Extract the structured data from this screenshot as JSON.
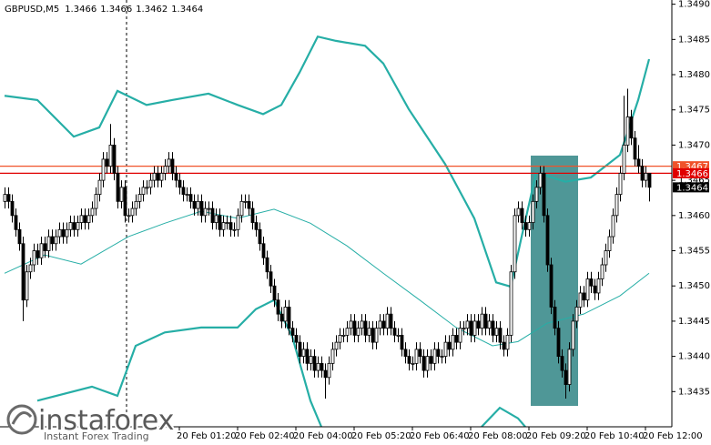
{
  "chart_data": {
    "type": "candlestick",
    "symbol": "GBPUSD,M5",
    "up_color": "#ffffff",
    "down_color": "#000000",
    "outline": "#000000",
    "xlim": [
      -1.25,
      183.25
    ],
    "ylim": [
      1.343,
      1.34906
    ],
    "yticks": [
      1.3435,
      {
        "value": 1.344,
        "label": "1.3440"
      },
      1.3445,
      {
        "value": 1.345,
        "label": "1.3450"
      },
      1.3455,
      {
        "value": 1.346,
        "label": "1.3460"
      },
      1.3465,
      {
        "value": 1.347,
        "label": "1.3470"
      },
      1.3475,
      {
        "value": 1.348,
        "label": "1.3480"
      },
      1.3485,
      {
        "value": 1.349,
        "label": "1.3490"
      }
    ],
    "xticks": [
      {
        "value": 48,
        "label": "20 Feb 01:20"
      },
      {
        "value": 64,
        "label": "20 Feb 02:40"
      },
      {
        "value": 80,
        "label": "20 Feb 04:00"
      },
      {
        "value": 96,
        "label": "20 Feb 05:20"
      },
      {
        "value": 112,
        "label": "20 Feb 06:40"
      },
      {
        "value": 128,
        "label": "20 Feb 08:00"
      },
      {
        "value": 144,
        "label": "20 Feb 09:20"
      },
      {
        "value": 160,
        "label": "20 Feb 10:40"
      },
      {
        "value": 176,
        "label": "20 Feb 12:00"
      }
    ],
    "open": [
      1.3462,
      1.3463,
      1.3462,
      1.346,
      1.3458,
      1.3456,
      1.3448,
      1.3452,
      1.3453,
      1.3455,
      1.3454,
      1.3456,
      1.3455,
      1.3457,
      1.3456,
      1.3457,
      1.3458,
      1.3457,
      1.3458,
      1.3459,
      1.3458,
      1.3459,
      1.346,
      1.3459,
      1.346,
      1.3461,
      1.3463,
      1.3465,
      1.3468,
      1.3467,
      1.347,
      1.3466,
      1.3462,
      1.3464,
      1.346,
      1.346,
      1.3461,
      1.3462,
      1.3463,
      1.3464,
      1.3464,
      1.3465,
      1.3466,
      1.3465,
      1.3466,
      1.3467,
      1.3468,
      1.3466,
      1.3465,
      1.3464,
      1.3463,
      1.3463,
      1.3462,
      1.3461,
      1.3462,
      1.346,
      1.3461,
      1.3461,
      1.3459,
      1.346,
      1.3458,
      1.3459,
      1.3459,
      1.3458,
      1.3458,
      1.346,
      1.3462,
      1.3462,
      1.3461,
      1.3459,
      1.3458,
      1.3456,
      1.3454,
      1.3452,
      1.345,
      1.3448,
      1.3446,
      1.3445,
      1.3447,
      1.3444,
      1.3443,
      1.3442,
      1.344,
      1.3441,
      1.3439,
      1.344,
      1.3438,
      1.3439,
      1.3438,
      1.3437,
      1.3439,
      1.3441,
      1.3442,
      1.3443,
      1.3443,
      1.3444,
      1.3445,
      1.3443,
      1.3444,
      1.3445,
      1.3443,
      1.3444,
      1.3442,
      1.3444,
      1.3445,
      1.3444,
      1.3446,
      1.3444,
      1.3443,
      1.3443,
      1.3441,
      1.344,
      1.3439,
      1.3439,
      1.3441,
      1.344,
      1.3438,
      1.344,
      1.3439,
      1.3441,
      1.344,
      1.344,
      1.3442,
      1.3441,
      1.3443,
      1.3442,
      1.3444,
      1.3444,
      1.3445,
      1.3443,
      1.3445,
      1.3444,
      1.3446,
      1.3444,
      1.3445,
      1.3443,
      1.3444,
      1.3442,
      1.3441,
      1.3443,
      1.3452,
      1.346,
      1.3461,
      1.3459,
      1.3458,
      1.3459,
      1.3462,
      1.3464,
      1.3466,
      1.346,
      1.3453,
      1.3447,
      1.3444,
      1.344,
      1.3438,
      1.3436,
      1.3441,
      1.3445,
      1.3447,
      1.3449,
      1.3448,
      1.3451,
      1.345,
      1.3449,
      1.3451,
      1.3453,
      1.3455,
      1.3457,
      1.346,
      1.3463,
      1.3466,
      1.347,
      1.3474,
      1.3471,
      1.3468,
      1.3467,
      1.3465,
      1.3466
    ],
    "high": [
      1.3464,
      1.3464,
      1.3463,
      1.3461,
      1.3459,
      1.3457,
      1.3453,
      1.3454,
      1.3456,
      1.3456,
      1.3457,
      1.3457,
      1.3458,
      1.3458,
      1.3458,
      1.3459,
      1.3459,
      1.3459,
      1.346,
      1.346,
      1.346,
      1.3461,
      1.3461,
      1.3461,
      1.3462,
      1.3464,
      1.3466,
      1.3469,
      1.3469,
      1.3473,
      1.3471,
      1.3467,
      1.3465,
      1.3465,
      1.3461,
      1.3462,
      1.3463,
      1.3464,
      1.3465,
      1.3465,
      1.3466,
      1.3467,
      1.3467,
      1.3467,
      1.3468,
      1.3469,
      1.3469,
      1.3467,
      1.3466,
      1.3465,
      1.3464,
      1.3464,
      1.3463,
      1.3463,
      1.3463,
      1.3462,
      1.3462,
      1.3462,
      1.3461,
      1.3461,
      1.346,
      1.346,
      1.346,
      1.3459,
      1.3461,
      1.3463,
      1.3463,
      1.3463,
      1.3462,
      1.346,
      1.3459,
      1.3457,
      1.3455,
      1.3453,
      1.3451,
      1.3449,
      1.3447,
      1.3448,
      1.3448,
      1.3445,
      1.3444,
      1.3443,
      1.3442,
      1.3442,
      1.3441,
      1.3441,
      1.344,
      1.344,
      1.3439,
      1.344,
      1.3442,
      1.3443,
      1.3444,
      1.3444,
      1.3445,
      1.3446,
      1.3446,
      1.3445,
      1.3446,
      1.3446,
      1.3445,
      1.3445,
      1.3445,
      1.3446,
      1.3446,
      1.3447,
      1.3447,
      1.3445,
      1.3444,
      1.3444,
      1.3442,
      1.3441,
      1.344,
      1.3442,
      1.3442,
      1.3441,
      1.3441,
      1.3441,
      1.3442,
      1.3442,
      1.3441,
      1.3443,
      1.3443,
      1.3444,
      1.3444,
      1.3445,
      1.3445,
      1.3446,
      1.3446,
      1.3446,
      1.3446,
      1.3447,
      1.3447,
      1.3446,
      1.3446,
      1.3445,
      1.3445,
      1.3443,
      1.3444,
      1.3453,
      1.3461,
      1.3462,
      1.3462,
      1.346,
      1.346,
      1.3463,
      1.3465,
      1.3467,
      1.3467,
      1.3461,
      1.3454,
      1.3448,
      1.3445,
      1.3441,
      1.3439,
      1.3442,
      1.3446,
      1.3448,
      1.345,
      1.345,
      1.3452,
      1.3452,
      1.3451,
      1.3452,
      1.3454,
      1.3456,
      1.3458,
      1.3461,
      1.3464,
      1.3467,
      1.3477,
      1.3478,
      1.3475,
      1.3472,
      1.347,
      1.3468,
      1.3467,
      1.3466
    ],
    "low": [
      1.3461,
      1.3461,
      1.3459,
      1.3457,
      1.3455,
      1.3445,
      1.3447,
      1.3451,
      1.3452,
      1.3453,
      1.3453,
      1.3454,
      1.3454,
      1.3455,
      1.3455,
      1.3456,
      1.3456,
      1.3456,
      1.3457,
      1.3457,
      1.3457,
      1.3458,
      1.3458,
      1.3458,
      1.3459,
      1.346,
      1.3462,
      1.3464,
      1.3466,
      1.3466,
      1.3465,
      1.3461,
      1.3461,
      1.3459,
      1.3459,
      1.3459,
      1.346,
      1.3461,
      1.3462,
      1.3463,
      1.3463,
      1.3464,
      1.3464,
      1.3464,
      1.3465,
      1.3466,
      1.3465,
      1.3464,
      1.3463,
      1.3462,
      1.3462,
      1.3461,
      1.346,
      1.346,
      1.3459,
      1.3459,
      1.346,
      1.3458,
      1.3458,
      1.3457,
      1.3457,
      1.3458,
      1.3457,
      1.3457,
      1.3457,
      1.3459,
      1.3461,
      1.346,
      1.3458,
      1.3457,
      1.3455,
      1.3453,
      1.3451,
      1.3449,
      1.3447,
      1.3445,
      1.3444,
      1.3444,
      1.3443,
      1.3442,
      1.3441,
      1.3439,
      1.3439,
      1.3438,
      1.3438,
      1.3437,
      1.3437,
      1.3437,
      1.3434,
      1.3436,
      1.3438,
      1.344,
      1.3441,
      1.3442,
      1.3442,
      1.3443,
      1.3442,
      1.3442,
      1.3443,
      1.3442,
      1.3442,
      1.3441,
      1.3441,
      1.3443,
      1.3443,
      1.3443,
      1.3443,
      1.3442,
      1.3442,
      1.344,
      1.3439,
      1.3438,
      1.3438,
      1.3438,
      1.3439,
      1.3437,
      1.3437,
      1.3438,
      1.3438,
      1.3439,
      1.3439,
      1.3439,
      1.344,
      1.344,
      1.3441,
      1.3441,
      1.3443,
      1.3443,
      1.3442,
      1.3442,
      1.3443,
      1.3443,
      1.3443,
      1.3443,
      1.3442,
      1.3442,
      1.3441,
      1.344,
      1.344,
      1.3442,
      1.3451,
      1.3459,
      1.3458,
      1.3457,
      1.3457,
      1.3458,
      1.3461,
      1.3463,
      1.3459,
      1.3452,
      1.3446,
      1.3443,
      1.3439,
      1.3437,
      1.3434,
      1.3435,
      1.344,
      1.3444,
      1.3446,
      1.3447,
      1.3447,
      1.3449,
      1.3448,
      1.3448,
      1.345,
      1.3452,
      1.3454,
      1.3456,
      1.3459,
      1.3462,
      1.3465,
      1.3469,
      1.347,
      1.3467,
      1.3466,
      1.3464,
      1.3464,
      1.3462
    ],
    "close": [
      1.3463,
      1.3462,
      1.346,
      1.3458,
      1.3456,
      1.3448,
      1.3452,
      1.3453,
      1.3455,
      1.3454,
      1.3456,
      1.3455,
      1.3457,
      1.3456,
      1.3457,
      1.3458,
      1.3457,
      1.3458,
      1.3459,
      1.3458,
      1.3459,
      1.346,
      1.3459,
      1.346,
      1.3461,
      1.3463,
      1.3465,
      1.3468,
      1.3467,
      1.347,
      1.3466,
      1.3462,
      1.3464,
      1.346,
      1.346,
      1.3461,
      1.3462,
      1.3463,
      1.3464,
      1.3464,
      1.3465,
      1.3466,
      1.3465,
      1.3466,
      1.3467,
      1.3468,
      1.3466,
      1.3465,
      1.3464,
      1.3463,
      1.3463,
      1.3462,
      1.3461,
      1.3462,
      1.346,
      1.3461,
      1.3461,
      1.3459,
      1.346,
      1.3458,
      1.3459,
      1.3459,
      1.3458,
      1.3458,
      1.346,
      1.3462,
      1.3462,
      1.3461,
      1.3459,
      1.3458,
      1.3456,
      1.3454,
      1.3452,
      1.345,
      1.3448,
      1.3446,
      1.3445,
      1.3447,
      1.3444,
      1.3443,
      1.3442,
      1.344,
      1.3441,
      1.3439,
      1.344,
      1.3438,
      1.3439,
      1.3438,
      1.3437,
      1.3439,
      1.3441,
      1.3442,
      1.3443,
      1.3443,
      1.3444,
      1.3445,
      1.3443,
      1.3444,
      1.3445,
      1.3443,
      1.3444,
      1.3442,
      1.3444,
      1.3445,
      1.3444,
      1.3446,
      1.3444,
      1.3443,
      1.3443,
      1.3441,
      1.344,
      1.3439,
      1.3439,
      1.3441,
      1.344,
      1.3438,
      1.344,
      1.3439,
      1.3441,
      1.344,
      1.344,
      1.3442,
      1.3441,
      1.3443,
      1.3442,
      1.3444,
      1.3444,
      1.3445,
      1.3443,
      1.3445,
      1.3444,
      1.3446,
      1.3444,
      1.3445,
      1.3443,
      1.3444,
      1.3442,
      1.3441,
      1.3443,
      1.3452,
      1.346,
      1.3461,
      1.3459,
      1.3458,
      1.3459,
      1.3462,
      1.3464,
      1.3466,
      1.346,
      1.3453,
      1.3447,
      1.3444,
      1.344,
      1.3438,
      1.3436,
      1.3441,
      1.3445,
      1.3447,
      1.3449,
      1.3448,
      1.3451,
      1.345,
      1.3449,
      1.3451,
      1.3453,
      1.3455,
      1.3457,
      1.346,
      1.3463,
      1.3466,
      1.347,
      1.3474,
      1.3471,
      1.3468,
      1.3467,
      1.3465,
      1.3466,
      1.3464
    ],
    "bands": [
      {
        "color": "#26aea6",
        "width": 2.2,
        "x": [
          0,
          9,
          19,
          26,
          31,
          39,
          46,
          56,
          64,
          71,
          76,
          81,
          86,
          91,
          99,
          104,
          111,
          121,
          129,
          135,
          139,
          142,
          146,
          154,
          161,
          169,
          174,
          177
        ],
        "values": [
          1.3477,
          1.34764,
          1.34712,
          1.34725,
          1.34777,
          1.34757,
          1.34764,
          1.34773,
          1.34757,
          1.34744,
          1.34757,
          1.34803,
          1.34854,
          1.34848,
          1.34841,
          1.34816,
          1.34751,
          1.34673,
          1.34596,
          1.34505,
          1.34499,
          1.3457,
          1.34661,
          1.34648,
          1.34654,
          1.34686,
          1.34764,
          1.34822
        ]
      },
      {
        "color": "#26aea6",
        "width": 1,
        "x": [
          0,
          11,
          21,
          34,
          44,
          54,
          64,
          74,
          84,
          94,
          104,
          114,
          124,
          134,
          141,
          149,
          159,
          169,
          177
        ],
        "values": [
          1.34518,
          1.34544,
          1.34531,
          1.3457,
          1.34589,
          1.34606,
          1.34596,
          1.34609,
          1.34589,
          1.34557,
          1.34518,
          1.3448,
          1.34441,
          1.34415,
          1.34421,
          1.34447,
          1.3446,
          1.34486,
          1.34518
        ]
      },
      {
        "color": "#26aea6",
        "width": 2.2,
        "x": [
          9,
          24,
          31,
          36,
          44,
          54,
          64,
          69,
          74,
          79,
          84,
          87,
          100,
          131,
          136,
          141,
          143
        ],
        "values": [
          1.34337,
          1.34357,
          1.34344,
          1.34415,
          1.34434,
          1.34441,
          1.34441,
          1.34467,
          1.3448,
          1.34428,
          1.34337,
          1.343,
          null,
          1.343,
          1.34327,
          1.34312,
          1.343
        ]
      }
    ],
    "price_levels": [
      {
        "value": 1.3467,
        "color": "#f0522a",
        "line": true
      },
      {
        "value": 1.3466,
        "color": "#e00000",
        "line": true
      },
      {
        "value": 1.3464,
        "color": "#000000",
        "line": false
      }
    ],
    "watermark": {
      "brand": "instaforex",
      "tagline": "Instant Forex Trading"
    }
  }
}
